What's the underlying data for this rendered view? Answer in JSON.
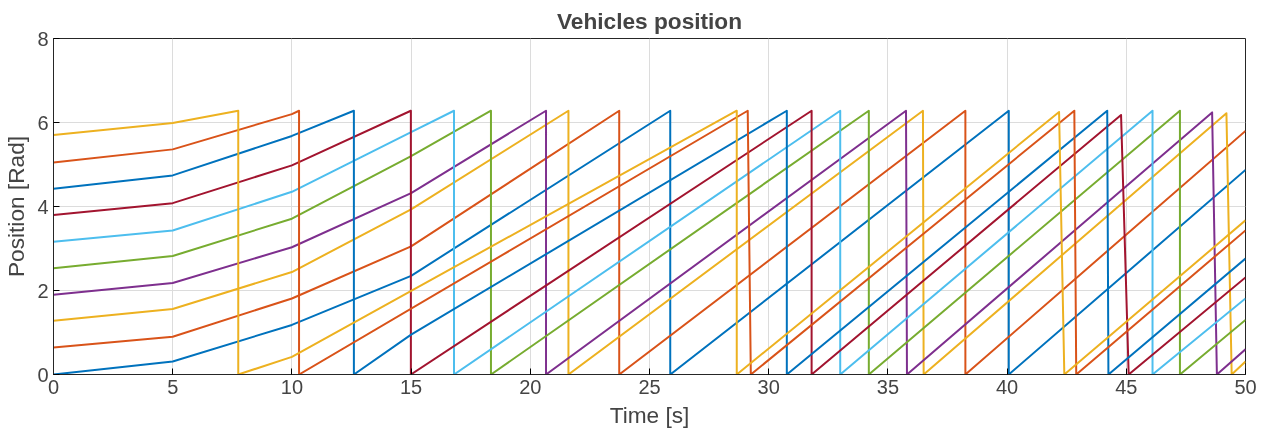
{
  "chart_data": {
    "type": "line",
    "title": "Vehicles position",
    "xlabel": "Time [s]",
    "ylabel": "Position [Rad]",
    "xlim": [
      0,
      50
    ],
    "ylim": [
      0,
      8
    ],
    "xticks": [
      0,
      5,
      10,
      15,
      20,
      25,
      30,
      35,
      40,
      45,
      50
    ],
    "yticks": [
      0,
      2,
      4,
      6,
      8
    ],
    "grid": true,
    "series": [
      {
        "color": "#0072bd",
        "x": [
          0,
          5,
          10,
          15,
          25.87,
          25.87,
          40.07,
          40.07,
          50
        ],
        "values": [
          0,
          0.31,
          1.18,
          2.35,
          6.28,
          0,
          6.28,
          0,
          4.87
        ]
      },
      {
        "color": "#d95319",
        "x": [
          0,
          5,
          10,
          15,
          23.73,
          23.73,
          38.25,
          38.25,
          50
        ],
        "values": [
          0.64,
          0.9,
          1.81,
          3.05,
          6.28,
          0,
          6.28,
          0,
          5.8
        ]
      },
      {
        "color": "#edb120",
        "x": [
          0,
          5,
          10,
          15,
          21.6,
          21.6,
          36.47,
          36.5,
          49.2,
          49.42,
          50
        ],
        "values": [
          1.28,
          1.56,
          2.44,
          3.93,
          6.28,
          0,
          6.28,
          0,
          6.22,
          0,
          0.31
        ]
      },
      {
        "color": "#7e2f8e",
        "x": [
          0,
          5,
          10,
          15,
          20.66,
          20.66,
          35.76,
          35.8,
          48.6,
          48.8,
          50
        ],
        "values": [
          1.9,
          2.18,
          3.03,
          4.32,
          6.28,
          0,
          6.28,
          0,
          6.24,
          0,
          0.6
        ]
      },
      {
        "color": "#77ac30",
        "x": [
          0,
          5,
          10,
          15,
          18.35,
          18.35,
          34.2,
          34.2,
          47.25,
          47.25,
          50
        ],
        "values": [
          2.53,
          2.82,
          3.71,
          5.2,
          6.28,
          0,
          6.28,
          0,
          6.28,
          0,
          1.3
        ]
      },
      {
        "color": "#4dbeee",
        "x": [
          0,
          5,
          10,
          15,
          16.8,
          16.8,
          33.0,
          33.0,
          46.1,
          46.1,
          50
        ],
        "values": [
          3.16,
          3.43,
          4.35,
          5.77,
          6.28,
          0,
          6.28,
          0,
          6.28,
          0,
          1.81
        ]
      },
      {
        "color": "#a2142f",
        "x": [
          0,
          5,
          10,
          14.99,
          14.99,
          31.8,
          31.8,
          44.78,
          45.1,
          50
        ],
        "values": [
          3.8,
          4.08,
          4.98,
          6.28,
          0,
          6.28,
          0,
          6.18,
          0,
          2.31
        ]
      },
      {
        "color": "#0072bd",
        "x": [
          0,
          5,
          10,
          12.6,
          12.6,
          15,
          30.76,
          30.76,
          44.2,
          44.25,
          50
        ],
        "values": [
          4.42,
          4.74,
          5.68,
          6.28,
          0,
          0.95,
          6.28,
          0,
          6.28,
          0,
          2.76
        ]
      },
      {
        "color": "#d95319",
        "x": [
          0,
          5,
          10,
          10.3,
          10.3,
          29.12,
          29.25,
          42.82,
          42.9,
          50
        ],
        "values": [
          5.05,
          5.36,
          6.2,
          6.28,
          0,
          6.28,
          0,
          6.28,
          0,
          3.43
        ]
      },
      {
        "color": "#edb120",
        "x": [
          0,
          5,
          7.75,
          7.75,
          10,
          28.66,
          28.66,
          42.18,
          42.4,
          50
        ],
        "values": [
          5.7,
          5.99,
          6.28,
          0,
          0.42,
          6.28,
          0,
          6.25,
          0,
          3.67
        ]
      }
    ]
  }
}
